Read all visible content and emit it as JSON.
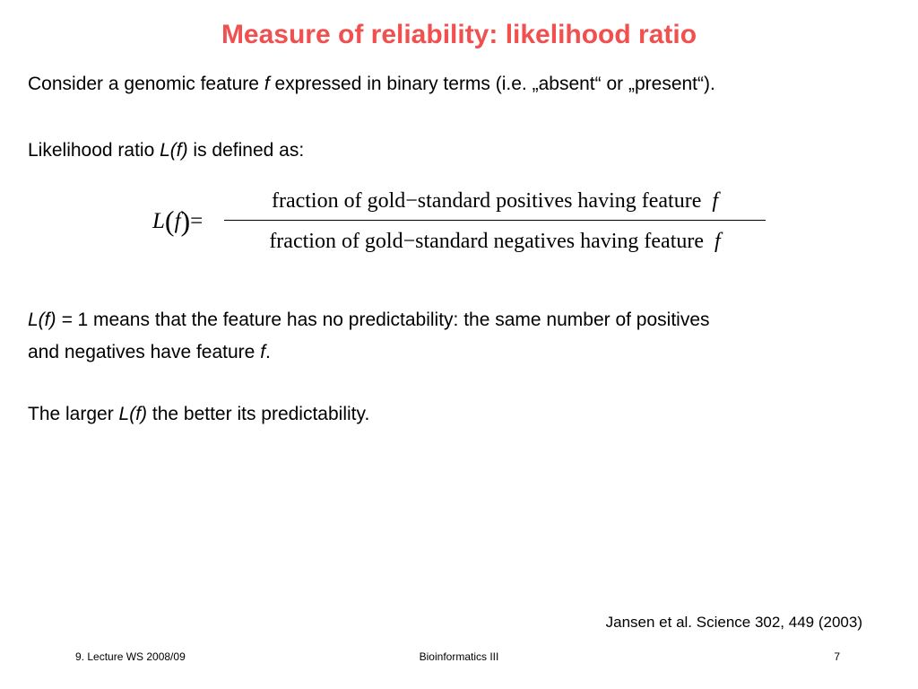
{
  "slide": {
    "title": "Measure of reliability: likelihood ratio",
    "p1": {
      "before": "Consider a genomic feature ",
      "var": "f",
      "after": " expressed in binary terms (i.e. „absent“ or „present“)."
    },
    "p2": {
      "before": "Likelihood ratio ",
      "var": "L(f)",
      "after": " is defined as:"
    },
    "formula": {
      "lhs_L": "L",
      "lhs_open": "(",
      "lhs_f": "f",
      "lhs_close": ")",
      "equals": "=",
      "numerator": "fraction of gold−standard  positives having  feature",
      "numerator_var": "f",
      "denominator": "fraction of gold−standard  negatives  having  feature",
      "denominator_var": "f"
    },
    "p3": {
      "var": "L(f) = ",
      "line1_rest": "1 means that the feature has no predictability: the same number of positives",
      "line2_before": "and negatives have feature ",
      "line2_var": "f",
      "line2_after": "."
    },
    "p4": {
      "before": "The larger ",
      "var": "L(f)",
      "after": " the better its predictability."
    },
    "citation": "Jansen et al. Science 302, 449 (2003)"
  },
  "footer": {
    "left": "9. Lecture WS 2008/09",
    "center": "Bioinformatics III",
    "right": "7"
  }
}
